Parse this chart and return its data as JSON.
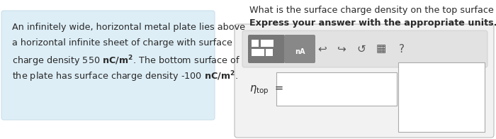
{
  "bg_color": "#ffffff",
  "left_box_color": "#ddeef6",
  "left_box_edge": "#c8dde8",
  "left_box_text_lines": [
    "An infinitely wide, horizontal metal plate lies above",
    "a horizontal infinite sheet of charge with surface",
    "charge density 550 $\\mathbf{nC/m^2}$. The bottom surface of",
    "the plate has surface charge density -100 $\\mathbf{nC/m^2}$."
  ],
  "question_text": "What is the surface charge density on the top surface of the plate?",
  "question_bold": "Express your answer with the appropriate units.",
  "font_size_question": 9.2,
  "font_size_bold": 9.2,
  "font_size_left": 9.2,
  "font_size_eta": 10.5
}
